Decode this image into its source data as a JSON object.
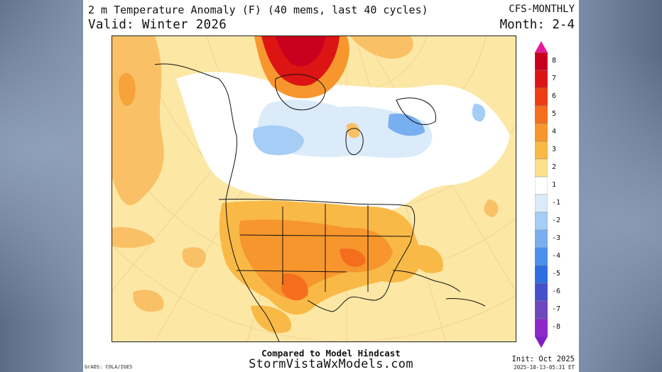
{
  "header": {
    "title": "2 m Temperature Anomaly (F) (40 mems, last 40 cycles)",
    "model": "CFS-MONTHLY",
    "valid": "Valid: Winter 2026",
    "month": "Month: 2-4"
  },
  "map": {
    "region": "North America",
    "legend": {
      "levels": [
        "8",
        "7",
        "6",
        "5",
        "4",
        "3",
        "2",
        "1",
        "-1",
        "-2",
        "-3",
        "-4",
        "-5",
        "-6",
        "-7",
        "-8"
      ],
      "colors": [
        "#c8001e",
        "#dc1414",
        "#f03c14",
        "#f56e1e",
        "#f7962d",
        "#f9b946",
        "#fde08c",
        "#ffffff",
        "#dcebfa",
        "#a5cdf5",
        "#78aff0",
        "#4b91eb",
        "#2d6ee1",
        "#4650c8",
        "#6e46be",
        "#8c28c8"
      ],
      "top_color": "#e6199b",
      "bottom_color": "#7e1ec8"
    }
  },
  "footer": {
    "compared": "Compared to Model Hindcast",
    "site": "StormVistaWxModels.com",
    "grads": "GrADS: COLA/IGES",
    "init": "Init: Oct 2025",
    "timestamp": "2025-10-13-05:31 ET"
  }
}
